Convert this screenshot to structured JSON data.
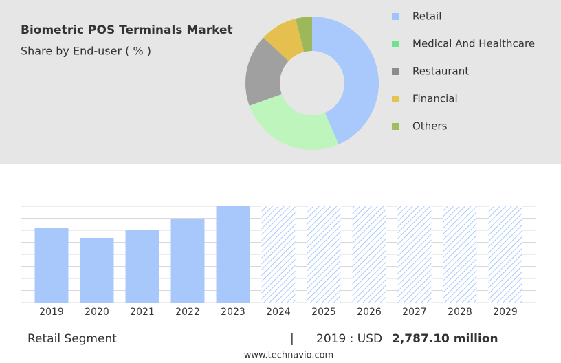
{
  "chart_data": [
    {
      "type": "pie",
      "donut": true,
      "title": "Biometric POS Terminals Market",
      "subtitle": "Share by End-user ( % )",
      "categories": [
        "Retail",
        "Medical And Healthcare",
        "Restaurant",
        "Financial",
        "Others"
      ],
      "values": [
        43.5,
        26,
        17.5,
        9,
        4
      ],
      "colors": [
        "#a9c8fc",
        "#bdf5bd",
        "#a0a0a0",
        "#e6c04e",
        "#9cb85a"
      ],
      "legend_colors": [
        "#9fc3ff",
        "#6de38f",
        "#8c8c8c",
        "#e6c251",
        "#9fbf5f"
      ],
      "legend": "right"
    },
    {
      "type": "bar",
      "categories": [
        "2019",
        "2020",
        "2021",
        "2022",
        "2023",
        "2024",
        "2025",
        "2026",
        "2027",
        "2028",
        "2029"
      ],
      "values": [
        2787.1,
        2426,
        2735,
        3123,
        3613,
        null,
        null,
        null,
        null,
        null,
        null
      ],
      "color": "#a8c8fc",
      "ylim": [
        0,
        3613
      ],
      "grid": true
    }
  ],
  "footer": {
    "segment": "Retail Segment",
    "separator": "|",
    "year_label": "2019 : USD",
    "value_label": "2,787.10 million",
    "source": "www.technavio.com"
  }
}
